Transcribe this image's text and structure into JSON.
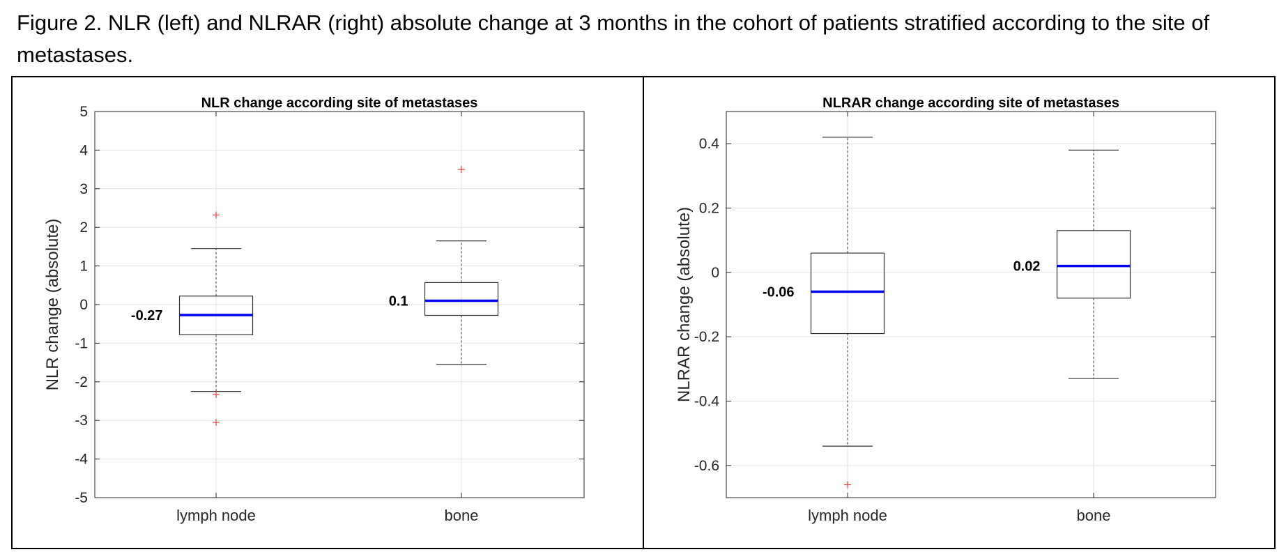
{
  "caption": "Figure 2. NLR (left) and NLRAR (right) absolute change at 3 months in the cohort of patients stratified according to the site of metastases.",
  "colors": {
    "median": "#0000ee",
    "outlier": "#e0403a",
    "box": "#333333",
    "grid": "#e2e2e2"
  },
  "chart_data": [
    {
      "type": "box",
      "title": "NLR change according site of metastases",
      "xlabel": "",
      "ylabel": "NLR change (absolute)",
      "ylim": [
        -5,
        5
      ],
      "yticks": [
        5,
        4,
        3,
        2,
        1,
        0,
        -1,
        -2,
        -3,
        -4,
        -5
      ],
      "ytick_labels": [
        "5",
        "4",
        "3",
        "2",
        "1",
        "0",
        "-1",
        "-2",
        "-3",
        "-4",
        "-5"
      ],
      "grid": true,
      "categories": [
        "lymph node",
        "bone"
      ],
      "boxes": [
        {
          "category": "lymph node",
          "whisker_low": -2.25,
          "q1": -0.78,
          "median": -0.27,
          "q3": 0.22,
          "whisker_high": 1.45,
          "outliers": [
            2.32,
            -2.33,
            -3.05
          ],
          "median_label": "-0.27"
        },
        {
          "category": "bone",
          "whisker_low": -1.55,
          "q1": -0.28,
          "median": 0.1,
          "q3": 0.57,
          "whisker_high": 1.65,
          "outliers": [
            3.5
          ],
          "median_label": "0.1"
        }
      ]
    },
    {
      "type": "box",
      "title": "NLRAR change according site of metastases",
      "xlabel": "",
      "ylabel": "NLRAR change (absolute)",
      "ylim": [
        -0.7,
        0.5
      ],
      "yticks": [
        0.4,
        0.2,
        0,
        -0.2,
        -0.4,
        -0.6
      ],
      "ytick_labels": [
        "0.4",
        "0.2",
        "0",
        "-0.2",
        "-0.4",
        "-0.6"
      ],
      "grid": true,
      "categories": [
        "lymph node",
        "bone"
      ],
      "boxes": [
        {
          "category": "lymph node",
          "whisker_low": -0.54,
          "q1": -0.19,
          "median": -0.06,
          "q3": 0.06,
          "whisker_high": 0.42,
          "outliers": [
            -0.66
          ],
          "median_label": "-0.06"
        },
        {
          "category": "bone",
          "whisker_low": -0.33,
          "q1": -0.08,
          "median": 0.02,
          "q3": 0.13,
          "whisker_high": 0.38,
          "outliers": [],
          "median_label": "0.02"
        }
      ]
    }
  ]
}
